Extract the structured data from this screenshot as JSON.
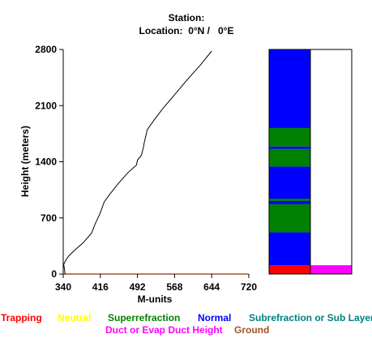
{
  "header": {
    "station_label": "Station:",
    "location_label": "Location:",
    "location_value": "0°N /   0°E"
  },
  "chart_data": {
    "type": "line",
    "title": "Station:  Location: 0°N / 0°E",
    "xlabel": "M-units",
    "ylabel": "Height (meters)",
    "xlim": [
      340,
      720
    ],
    "ylim": [
      0,
      2800
    ],
    "x_ticks": [
      "340",
      "416",
      "492",
      "568",
      "644",
      "720"
    ],
    "y_ticks": [
      "0",
      "700",
      "1400",
      "2100",
      "2800"
    ],
    "profile": {
      "m_units": [
        344,
        342,
        341,
        346,
        352,
        364,
        381,
        398,
        405,
        415,
        424,
        436,
        453,
        472,
        490,
        492,
        500,
        504,
        506,
        512,
        526,
        545,
        570,
        595,
        620,
        644
      ],
      "height_m": [
        0,
        80,
        120,
        180,
        230,
        300,
        390,
        510,
        620,
        750,
        900,
        1000,
        1130,
        1260,
        1360,
        1420,
        1480,
        1570,
        1640,
        1800,
        1920,
        2070,
        2250,
        2430,
        2600,
        2780
      ]
    },
    "refractivity_column": {
      "layers": [
        {
          "type": "Duct or Evap Duct Height",
          "from_m": 0,
          "to_m": 110
        },
        {
          "type": "Normal",
          "from_m": 110,
          "to_m": 520
        },
        {
          "type": "Superrefraction",
          "from_m": 520,
          "to_m": 870
        },
        {
          "type": "Normal",
          "from_m": 870,
          "to_m": 910
        },
        {
          "type": "Superrefraction",
          "from_m": 910,
          "to_m": 940
        },
        {
          "type": "Normal",
          "from_m": 940,
          "to_m": 1340
        },
        {
          "type": "Superrefraction",
          "from_m": 1340,
          "to_m": 1560
        },
        {
          "type": "Normal",
          "from_m": 1560,
          "to_m": 1590
        },
        {
          "type": "Superrefraction",
          "from_m": 1590,
          "to_m": 1820
        },
        {
          "type": "Normal",
          "from_m": 1820,
          "to_m": 2800
        }
      ],
      "left_bottom_band": {
        "type": "Trapping",
        "from_m": 0,
        "to_m": 110
      }
    },
    "legend_placement": "bottom"
  },
  "legend": [
    {
      "label": "Trapping",
      "color": "#ff0000"
    },
    {
      "label": "Neutral",
      "color": "#ffff00"
    },
    {
      "label": "Superrefraction",
      "color": "#008000"
    },
    {
      "label": "Normal",
      "color": "#0000ff"
    },
    {
      "label": "Subrefraction or Sub Layer",
      "color": "#008080"
    },
    {
      "label": "Duct or Evap Duct Height",
      "color": "#ff00ff"
    },
    {
      "label": "Ground",
      "color": "#a0522d"
    }
  ],
  "colors": {
    "Normal": "#0000ff",
    "Superrefraction": "#008000",
    "Trapping": "#ff0000",
    "Duct or Evap Duct Height": "#ff00ff",
    "Ground": "#a0522d",
    "axis": "#000000",
    "profile_line": "#000000"
  }
}
